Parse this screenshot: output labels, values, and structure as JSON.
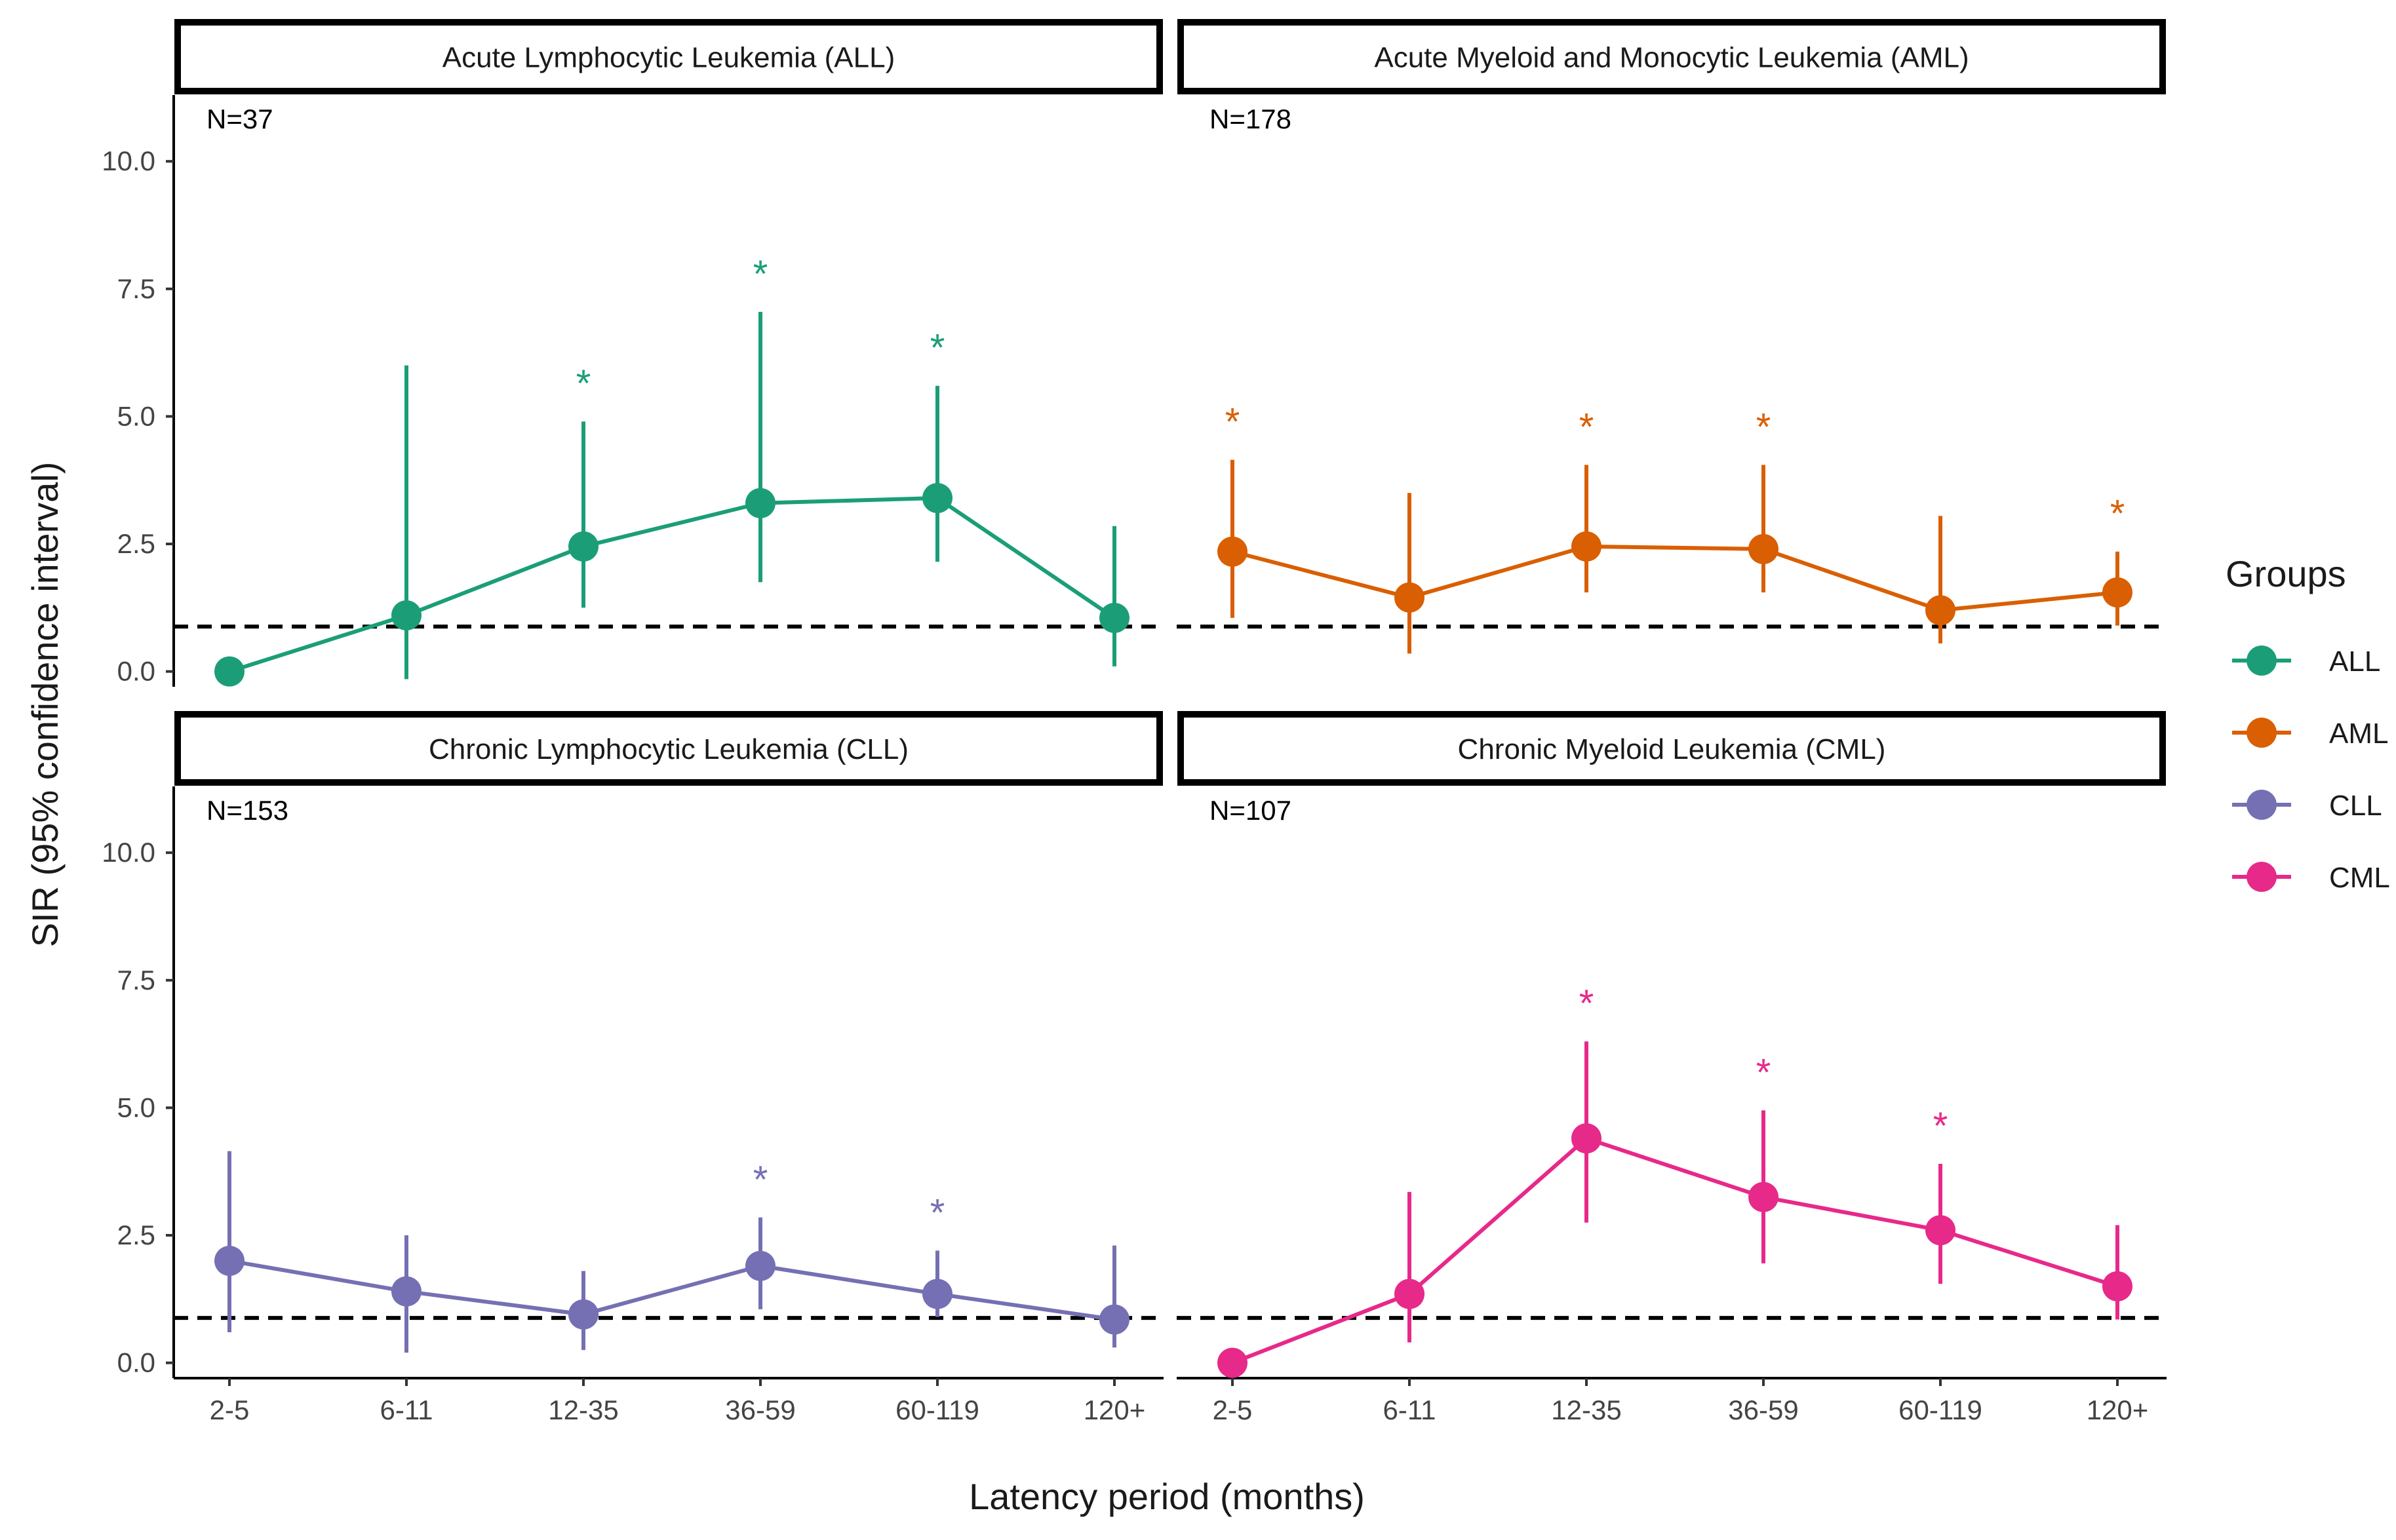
{
  "chart_data": {
    "type": "line",
    "facet_layout": "2x2 grid",
    "xlabel": "Latency period (months)",
    "ylabel": "SIR (95% confidence interval)",
    "categories": [
      "2-5",
      "6-11",
      "12-35",
      "36-59",
      "60-119",
      "120+"
    ],
    "ylim": [
      -0.3,
      11.3
    ],
    "y_ticks": [
      "0.0",
      "2.5",
      "5.0",
      "7.5",
      "10.0"
    ],
    "reference_line": {
      "value": 0.88,
      "style": "dashed"
    },
    "significance_marker": "*",
    "legend": {
      "title": "Groups",
      "position": "right"
    },
    "grid": false,
    "panels": [
      {
        "title": "Acute Lymphocytic Leukemia (ALL)",
        "n_label": "N=37",
        "series": "ALL",
        "color": "#1b9e77",
        "points": [
          {
            "x": "2-5",
            "y": 0.0,
            "lower": null,
            "upper": null,
            "significant": false
          },
          {
            "x": "6-11",
            "y": 1.1,
            "lower": -0.15,
            "upper": 6.0,
            "significant": false
          },
          {
            "x": "12-35",
            "y": 2.45,
            "lower": 1.25,
            "upper": 4.9,
            "significant": true
          },
          {
            "x": "36-59",
            "y": 3.3,
            "lower": 1.75,
            "upper": 7.05,
            "significant": true
          },
          {
            "x": "60-119",
            "y": 3.4,
            "lower": 2.15,
            "upper": 5.6,
            "significant": true
          },
          {
            "x": "120+",
            "y": 1.05,
            "lower": 0.1,
            "upper": 2.85,
            "significant": false
          }
        ]
      },
      {
        "title": "Acute Myeloid and Monocytic Leukemia (AML)",
        "n_label": "N=178",
        "series": "AML",
        "color": "#d95f02",
        "points": [
          {
            "x": "2-5",
            "y": 2.35,
            "lower": 1.05,
            "upper": 4.15,
            "significant": true
          },
          {
            "x": "6-11",
            "y": 1.45,
            "lower": 0.35,
            "upper": 3.5,
            "significant": false
          },
          {
            "x": "12-35",
            "y": 2.45,
            "lower": 1.55,
            "upper": 4.05,
            "significant": true
          },
          {
            "x": "36-59",
            "y": 2.4,
            "lower": 1.55,
            "upper": 4.05,
            "significant": true
          },
          {
            "x": "60-119",
            "y": 1.2,
            "lower": 0.55,
            "upper": 3.05,
            "significant": false
          },
          {
            "x": "120+",
            "y": 1.55,
            "lower": 0.9,
            "upper": 2.35,
            "significant": true
          }
        ]
      },
      {
        "title": "Chronic Lymphocytic Leukemia (CLL)",
        "n_label": "N=153",
        "series": "CLL",
        "color": "#7570b3",
        "points": [
          {
            "x": "2-5",
            "y": 2.0,
            "lower": 0.6,
            "upper": 4.15,
            "significant": false
          },
          {
            "x": "6-11",
            "y": 1.4,
            "lower": 0.2,
            "upper": 2.5,
            "significant": false
          },
          {
            "x": "12-35",
            "y": 0.95,
            "lower": 0.25,
            "upper": 1.8,
            "significant": false
          },
          {
            "x": "36-59",
            "y": 1.9,
            "lower": 1.05,
            "upper": 2.85,
            "significant": true
          },
          {
            "x": "60-119",
            "y": 1.35,
            "lower": 0.9,
            "upper": 2.2,
            "significant": true
          },
          {
            "x": "120+",
            "y": 0.85,
            "lower": 0.3,
            "upper": 2.3,
            "significant": false
          }
        ]
      },
      {
        "title": "Chronic Myeloid Leukemia (CML)",
        "n_label": "N=107",
        "series": "CML",
        "color": "#e7298a",
        "points": [
          {
            "x": "2-5",
            "y": 0.0,
            "lower": null,
            "upper": null,
            "significant": false
          },
          {
            "x": "6-11",
            "y": 1.35,
            "lower": 0.4,
            "upper": 3.35,
            "significant": false
          },
          {
            "x": "12-35",
            "y": 4.4,
            "lower": 2.75,
            "upper": 6.3,
            "significant": true
          },
          {
            "x": "36-59",
            "y": 3.25,
            "lower": 1.95,
            "upper": 4.95,
            "significant": true
          },
          {
            "x": "60-119",
            "y": 2.6,
            "lower": 1.55,
            "upper": 3.9,
            "significant": true
          },
          {
            "x": "120+",
            "y": 1.5,
            "lower": 0.85,
            "upper": 2.7,
            "significant": false
          }
        ]
      }
    ],
    "legend_entries": [
      {
        "label": "ALL",
        "color": "#1b9e77"
      },
      {
        "label": "AML",
        "color": "#d95f02"
      },
      {
        "label": "CLL",
        "color": "#7570b3"
      },
      {
        "label": "CML",
        "color": "#e7298a"
      }
    ]
  }
}
